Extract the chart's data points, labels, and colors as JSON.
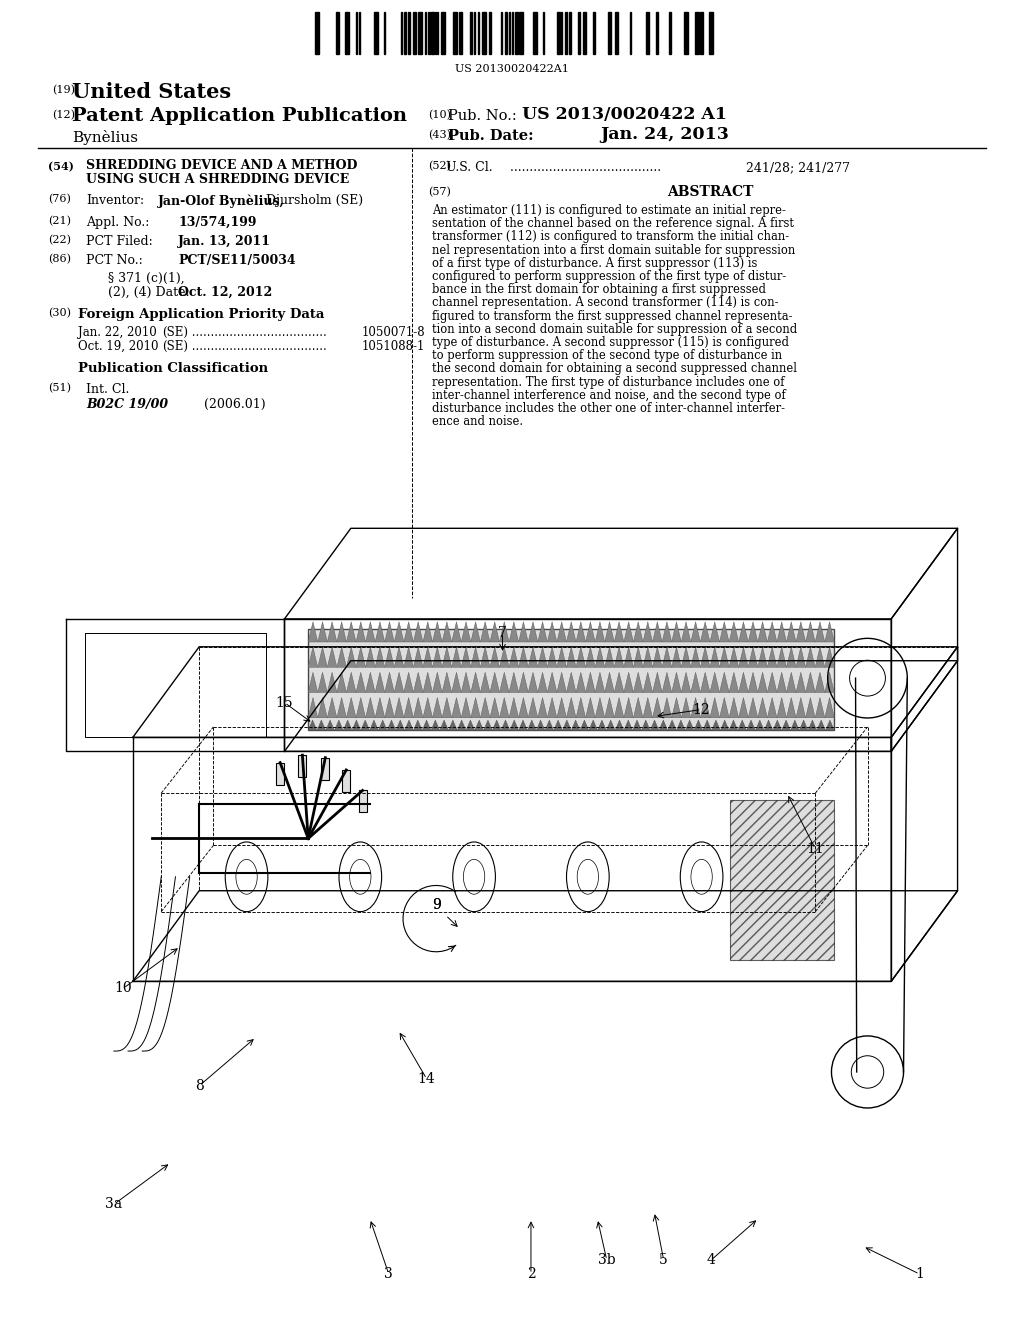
{
  "bg_color": "#ffffff",
  "barcode_text": "US 20130020422A1",
  "header_country_num": "(19)",
  "header_country": "United States",
  "header_pub_type_num": "(12)",
  "header_pub_type": "Patent Application Publication",
  "header_pub_no_num": "(10)",
  "header_pub_no_label": "Pub. No.:",
  "header_pub_no": "US 2013/0020422 A1",
  "header_inventor": "Bynèlius",
  "header_pub_date_num": "(43)",
  "header_pub_date_label": "Pub. Date:",
  "header_pub_date": "Jan. 24, 2013",
  "lc_title_num": "(54)",
  "lc_title_line1": "SHREDDING DEVICE AND A METHOD",
  "lc_title_line2": "USING SUCH A SHREDDING DEVICE",
  "lc_inv_num": "(76)",
  "lc_inv_label": "Inventor:",
  "lc_inv_name": "Jan-Olof Bynèlius,",
  "lc_inv_rest": " Djursholm (SE)",
  "lc_appl_num": "(21)",
  "lc_appl_label": "Appl. No.:",
  "lc_appl_val": "13/574,199",
  "lc_pct_filed_num": "(22)",
  "lc_pct_filed_label": "PCT Filed:",
  "lc_pct_filed_val": "Jan. 13, 2011",
  "lc_pct_no_num": "(86)",
  "lc_pct_no_label": "PCT No.:",
  "lc_pct_no_val": "PCT/SE11/50034",
  "lc_sect1": "§ 371 (c)(1),",
  "lc_sect2": "(2), (4) Date:",
  "lc_sect_date": "Oct. 12, 2012",
  "lc_foreign_num": "(30)",
  "lc_foreign_title": "Foreign Application Priority Data",
  "lc_f1_date": "Jan. 22, 2010",
  "lc_f1_country": "(SE)",
  "lc_f1_num": "1050071-8",
  "lc_f2_date": "Oct. 19, 2010",
  "lc_f2_country": "(SE)",
  "lc_f2_num": "1051088-1",
  "lc_pub_class": "Publication Classification",
  "lc_int_cl_num": "(51)",
  "lc_int_cl_label": "Int. Cl.",
  "lc_int_cl_code": "B02C 19/00",
  "lc_int_cl_date": "(2006.01)",
  "rc_us_cl_num": "(52)",
  "rc_us_cl_label": "U.S. Cl.",
  "rc_us_cl_val": "241/28; 241/277",
  "rc_abstract_num": "(57)",
  "rc_abstract_title": "ABSTRACT",
  "rc_abstract_lines": [
    "An estimator (111) is configured to estimate an initial repre-",
    "sentation of the channel based on the reference signal. A first",
    "transformer (112) is configured to transform the initial chan-",
    "nel representation into a first domain suitable for suppression",
    "of a first type of disturbance. A first suppressor (113) is",
    "configured to perform suppression of the first type of distur-",
    "bance in the first domain for obtaining a first suppressed",
    "channel representation. A second transformer (114) is con-",
    "figured to transform the first suppressed channel representa-",
    "tion into a second domain suitable for suppression of a second",
    "type of disturbance. A second suppressor (115) is configured",
    "to perform suppression of the second type of disturbance in",
    "the second domain for obtaining a second suppressed channel",
    "representation. The first type of disturbance includes one of",
    "inter-channel interference and noise, and the second type of",
    "disturbance includes the other one of inter-channel interfer-",
    "ence and noise."
  ],
  "diag_labels": {
    "1": [
      0.93,
      0.97,
      0.87,
      0.93
    ],
    "2": [
      0.52,
      0.97,
      0.52,
      0.89
    ],
    "3": [
      0.37,
      0.97,
      0.35,
      0.89
    ],
    "3a": [
      0.08,
      0.87,
      0.14,
      0.81
    ],
    "3b": [
      0.6,
      0.95,
      0.59,
      0.89
    ],
    "4": [
      0.71,
      0.95,
      0.76,
      0.89
    ],
    "5": [
      0.66,
      0.95,
      0.65,
      0.88
    ],
    "7": [
      0.49,
      0.05,
      0.49,
      0.08
    ],
    "8": [
      0.17,
      0.7,
      0.23,
      0.63
    ],
    "9": [
      0.42,
      0.44,
      null,
      null
    ],
    "10": [
      0.09,
      0.56,
      0.15,
      0.5
    ],
    "11": [
      0.82,
      0.36,
      0.79,
      0.28
    ],
    "12": [
      0.7,
      0.16,
      0.65,
      0.17
    ],
    "14": [
      0.41,
      0.69,
      0.38,
      0.62
    ],
    "15": [
      0.26,
      0.15,
      0.29,
      0.18
    ]
  }
}
